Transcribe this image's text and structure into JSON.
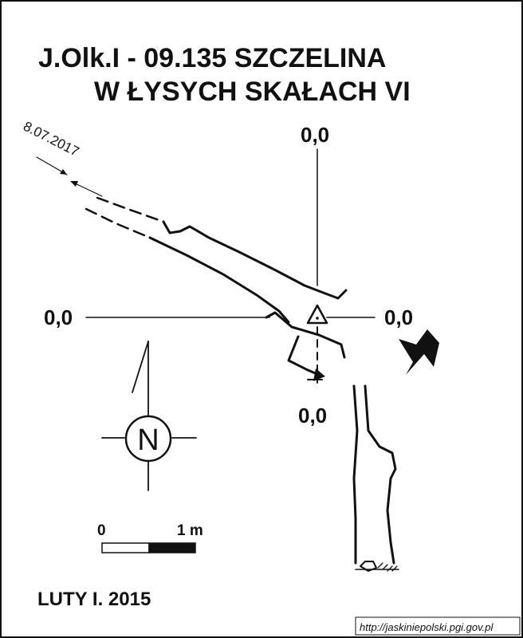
{
  "title": {
    "line1": "J.Olk.I - 09.135  SZCZELINA",
    "line2": "W ŁYSYCH SKAŁACH VI"
  },
  "survey_date": "8.07.2017",
  "coordinates": {
    "top": "0,0",
    "left": "0,0",
    "right": "0,0",
    "bottom": "0,0"
  },
  "north_symbol": "N",
  "scale_bar": {
    "start": "0",
    "end": "1 m"
  },
  "author": "LUTY I. 2015",
  "credit": "http://jaskiniepolski.pgi.gov.pl",
  "colors": {
    "ink": "#111111",
    "background": "#ffffff"
  },
  "icons": [
    "north-arrow-icon",
    "entrance-arrow-icon",
    "survey-station-triangle-icon"
  ]
}
